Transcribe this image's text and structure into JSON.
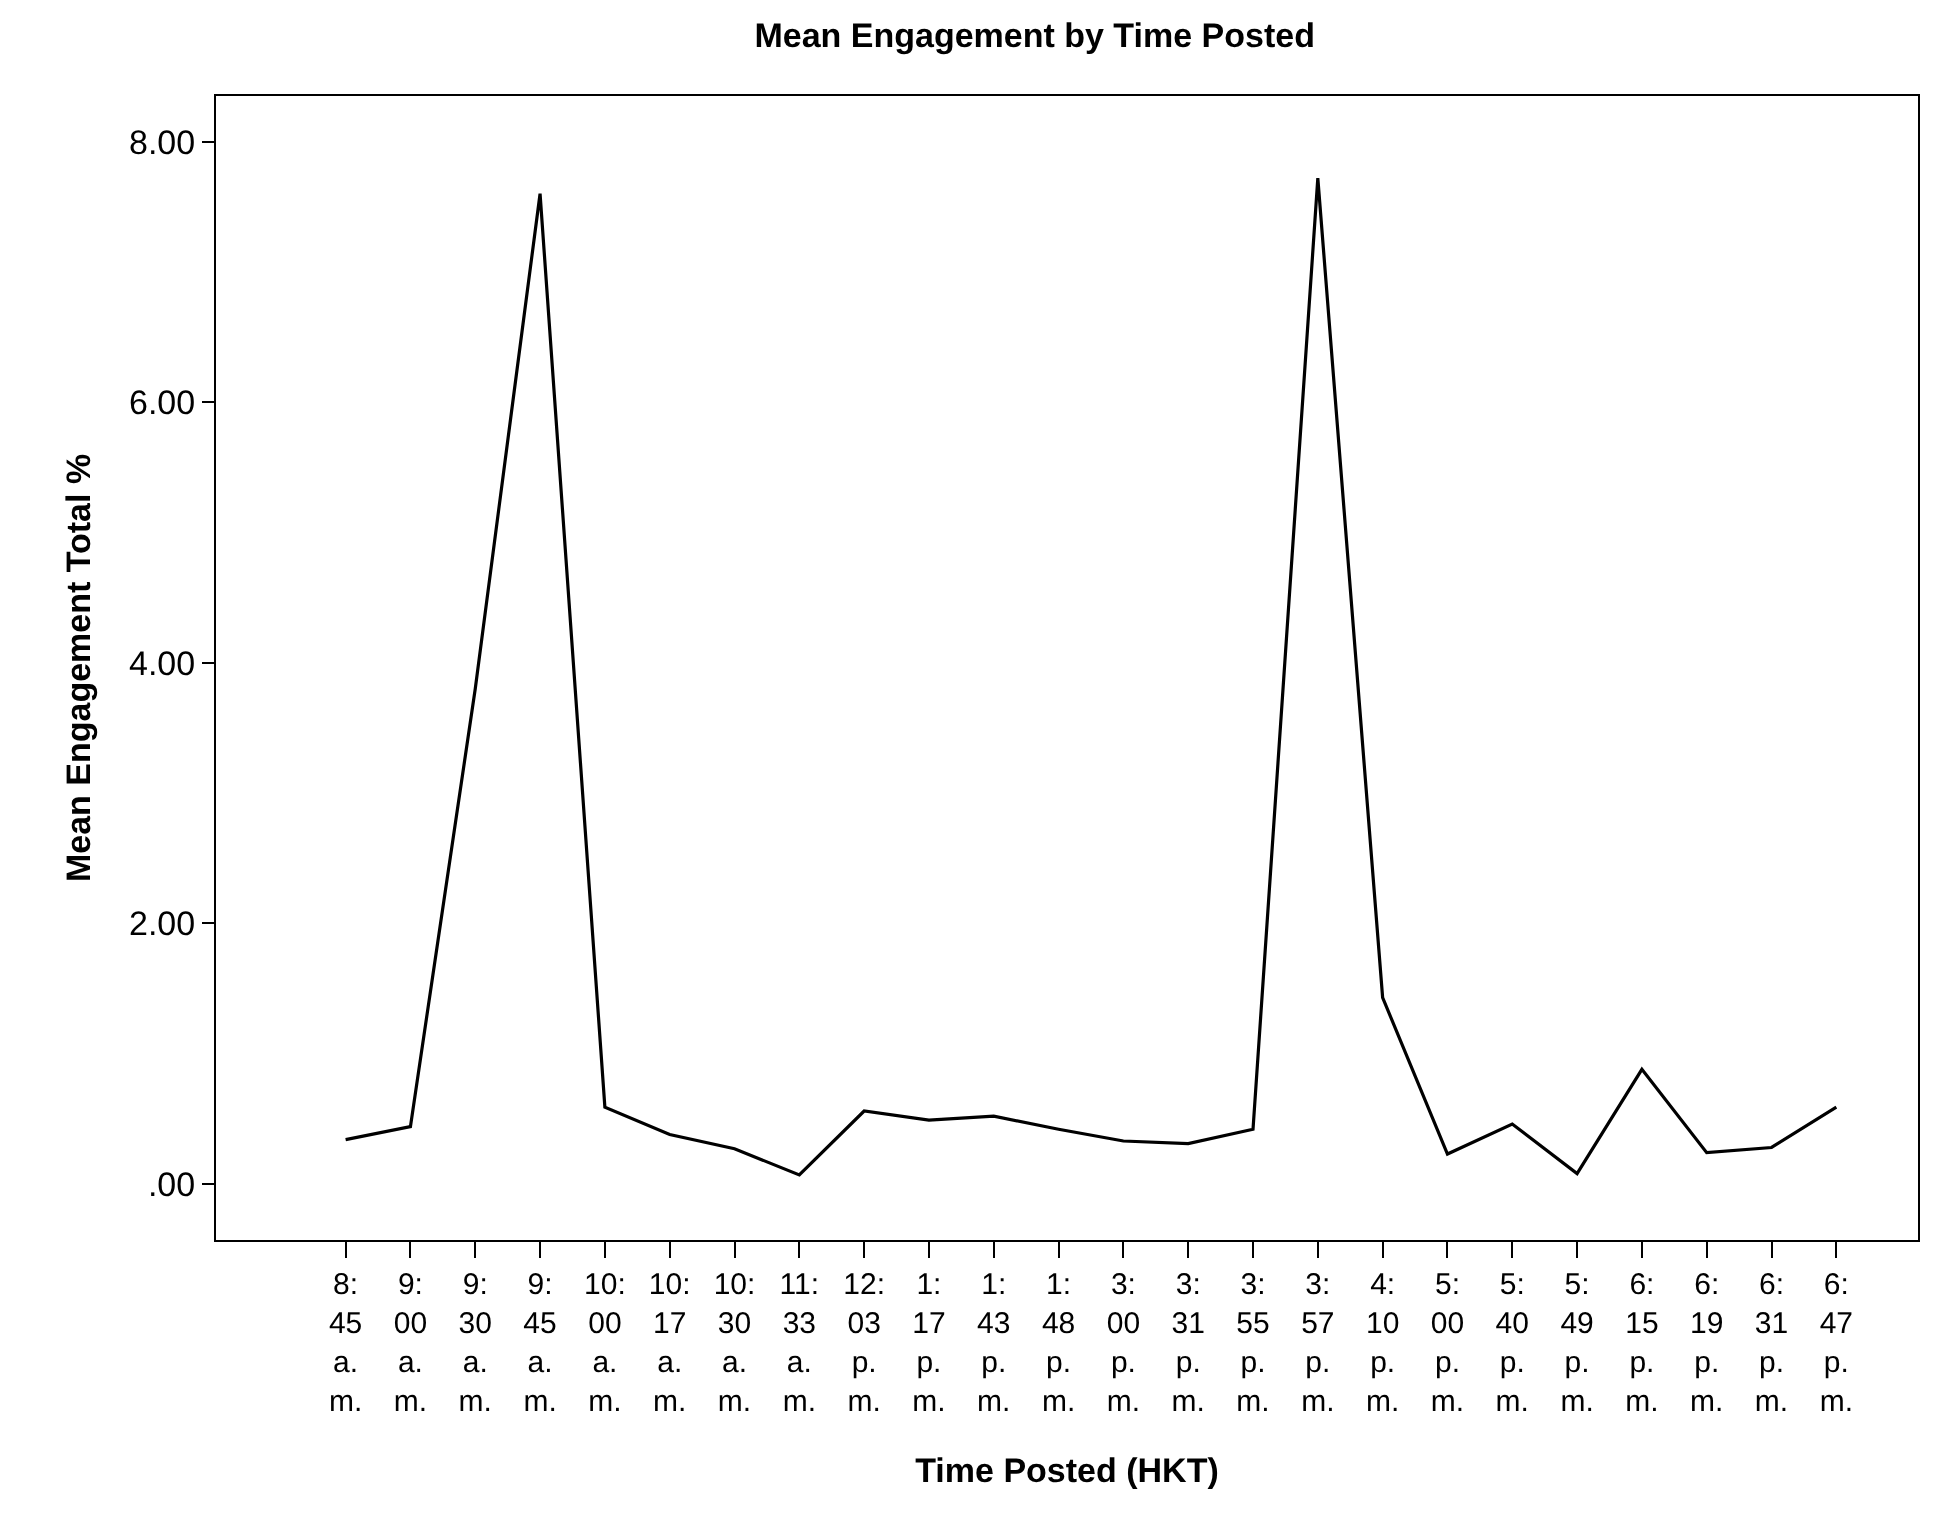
{
  "chart_data": {
    "type": "line",
    "title": "Mean Engagement by Time Posted",
    "xlabel": "Time Posted (HKT)",
    "ylabel": "Mean Engagement Total %",
    "categories": [
      "8:45 a.m.",
      "9:00 a.m.",
      "9:30 a.m.",
      "9:45 a.m.",
      "10:00 a.m.",
      "10:17 a.m.",
      "10:30 a.m.",
      "11:33 a.m.",
      "12:03 p.m.",
      "1:17 p.m.",
      "1:43 p.m.",
      "1:48 p.m.",
      "3:00 p.m.",
      "3:31 p.m.",
      "3:55 p.m.",
      "3:57 p.m.",
      "4:10 p.m.",
      "5:00 p.m.",
      "5:40 p.m.",
      "5:49 p.m.",
      "6:15 p.m.",
      "6:19 p.m.",
      "6:31 p.m.",
      "6:47 p.m."
    ],
    "series": [
      {
        "color": "#000000",
        "values": [
          0.34,
          0.44,
          3.8,
          7.6,
          0.59,
          0.38,
          0.27,
          0.07,
          0.56,
          0.49,
          0.52,
          0.42,
          0.33,
          0.31,
          0.42,
          7.72,
          1.43,
          0.23,
          0.46,
          0.08,
          0.88,
          0.24,
          0.28,
          0.59
        ]
      }
    ],
    "ylim": [
      -0.43,
      8.35
    ],
    "yticks": [
      {
        "value": 0,
        "label": ".00"
      },
      {
        "value": 2,
        "label": "2.00"
      },
      {
        "value": 4,
        "label": "4.00"
      },
      {
        "value": 6,
        "label": "6.00"
      },
      {
        "value": 8,
        "label": "8.00"
      }
    ],
    "grid": false,
    "marker": "none",
    "line_style": "solid"
  }
}
